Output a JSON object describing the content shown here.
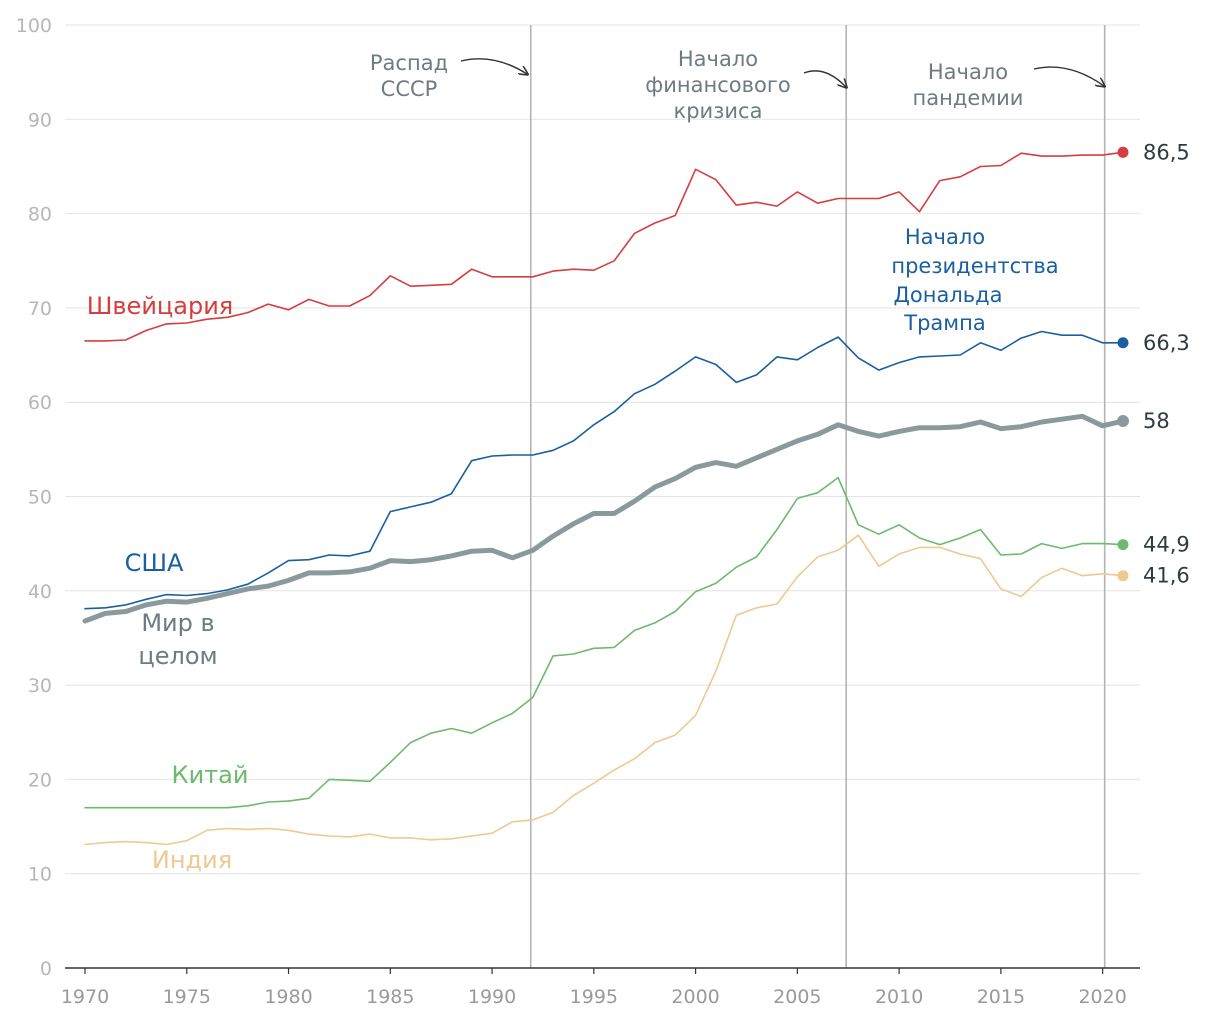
{
  "chart_data": {
    "type": "line",
    "xlim": [
      1970,
      2021
    ],
    "ylim": [
      0,
      100
    ],
    "y_ticks": [
      "0",
      "10",
      "20",
      "30",
      "40",
      "50",
      "60",
      "70",
      "80",
      "90",
      "100"
    ],
    "x_ticks": [
      "1970",
      "1975",
      "1980",
      "1985",
      "1990",
      "1995",
      "2000",
      "2005",
      "2010",
      "2015",
      "2020"
    ],
    "grid": true,
    "events": [
      {
        "year": 1991.9,
        "label_lines": [
          "Распад",
          "СССР"
        ]
      },
      {
        "year": 2007.4,
        "label_lines": [
          "Начало",
          "финансового",
          "кризиса"
        ]
      },
      {
        "year": 2020.1,
        "label_lines": [
          "Начало",
          "пандемии"
        ]
      }
    ],
    "annotation_trump": [
      "Начало",
      "президентства",
      "Дональда",
      "Трампа"
    ],
    "series": [
      {
        "name": "Швейцария",
        "label_lines": [
          "Швейцария"
        ],
        "color": "#d53e3e",
        "end_label": "86,5",
        "end_value": 86.5,
        "values": [
          [
            1970,
            66.5
          ],
          [
            1971,
            66.5
          ],
          [
            1972,
            66.6
          ],
          [
            1973,
            67.6
          ],
          [
            1974,
            68.3
          ],
          [
            1975,
            68.4
          ],
          [
            1976,
            68.8
          ],
          [
            1977,
            69.0
          ],
          [
            1978,
            69.5
          ],
          [
            1979,
            70.4
          ],
          [
            1980,
            69.8
          ],
          [
            1981,
            70.9
          ],
          [
            1982,
            70.2
          ],
          [
            1983,
            70.2
          ],
          [
            1984,
            71.3
          ],
          [
            1985,
            73.4
          ],
          [
            1986,
            72.3
          ],
          [
            1987,
            72.4
          ],
          [
            1988,
            72.5
          ],
          [
            1989,
            74.1
          ],
          [
            1990,
            73.3
          ],
          [
            1991,
            73.3
          ],
          [
            1992,
            73.3
          ],
          [
            1993,
            73.9
          ],
          [
            1994,
            74.1
          ],
          [
            1995,
            74.0
          ],
          [
            1996,
            75.0
          ],
          [
            1997,
            77.9
          ],
          [
            1998,
            79.0
          ],
          [
            1999,
            79.8
          ],
          [
            2000,
            84.7
          ],
          [
            2001,
            83.6
          ],
          [
            2002,
            80.9
          ],
          [
            2003,
            81.2
          ],
          [
            2004,
            80.8
          ],
          [
            2005,
            82.3
          ],
          [
            2006,
            81.1
          ],
          [
            2007,
            81.6
          ],
          [
            2008,
            81.6
          ],
          [
            2009,
            81.6
          ],
          [
            2010,
            82.3
          ],
          [
            2011,
            80.2
          ],
          [
            2012,
            83.5
          ],
          [
            2013,
            83.9
          ],
          [
            2014,
            85.0
          ],
          [
            2015,
            85.1
          ],
          [
            2016,
            86.4
          ],
          [
            2017,
            86.1
          ],
          [
            2018,
            86.1
          ],
          [
            2019,
            86.2
          ],
          [
            2020,
            86.2
          ],
          [
            2021,
            86.5
          ]
        ]
      },
      {
        "name": "США",
        "label_lines": [
          "США"
        ],
        "color": "#1a5fa0",
        "end_label": "66,3",
        "end_value": 66.3,
        "values": [
          [
            1970,
            38.1
          ],
          [
            1971,
            38.2
          ],
          [
            1972,
            38.5
          ],
          [
            1973,
            39.1
          ],
          [
            1974,
            39.6
          ],
          [
            1975,
            39.5
          ],
          [
            1976,
            39.7
          ],
          [
            1977,
            40.1
          ],
          [
            1978,
            40.7
          ],
          [
            1979,
            41.9
          ],
          [
            1980,
            43.2
          ],
          [
            1981,
            43.3
          ],
          [
            1982,
            43.8
          ],
          [
            1983,
            43.7
          ],
          [
            1984,
            44.2
          ],
          [
            1985,
            48.4
          ],
          [
            1986,
            48.9
          ],
          [
            1987,
            49.4
          ],
          [
            1988,
            50.3
          ],
          [
            1989,
            53.8
          ],
          [
            1990,
            54.3
          ],
          [
            1991,
            54.4
          ],
          [
            1992,
            54.4
          ],
          [
            1993,
            54.9
          ],
          [
            1994,
            55.9
          ],
          [
            1995,
            57.6
          ],
          [
            1996,
            59.0
          ],
          [
            1997,
            60.9
          ],
          [
            1998,
            61.9
          ],
          [
            1999,
            63.3
          ],
          [
            2000,
            64.8
          ],
          [
            2001,
            64.0
          ],
          [
            2002,
            62.1
          ],
          [
            2003,
            62.9
          ],
          [
            2004,
            64.8
          ],
          [
            2005,
            64.5
          ],
          [
            2006,
            65.8
          ],
          [
            2007,
            66.9
          ],
          [
            2008,
            64.7
          ],
          [
            2009,
            63.4
          ],
          [
            2010,
            64.2
          ],
          [
            2011,
            64.8
          ],
          [
            2012,
            64.9
          ],
          [
            2013,
            65.0
          ],
          [
            2014,
            66.3
          ],
          [
            2015,
            65.5
          ],
          [
            2016,
            66.8
          ],
          [
            2017,
            67.5
          ],
          [
            2018,
            67.1
          ],
          [
            2019,
            67.1
          ],
          [
            2020,
            66.3
          ],
          [
            2021,
            66.3
          ]
        ]
      },
      {
        "name": "Мир в целом",
        "label_lines": [
          "Мир в",
          "целом"
        ],
        "color": "#8a9a9c",
        "end_label": "58",
        "end_value": 58,
        "values": [
          [
            1970,
            36.8
          ],
          [
            1971,
            37.6
          ],
          [
            1972,
            37.8
          ],
          [
            1973,
            38.5
          ],
          [
            1974,
            38.9
          ],
          [
            1975,
            38.8
          ],
          [
            1976,
            39.2
          ],
          [
            1977,
            39.7
          ],
          [
            1978,
            40.2
          ],
          [
            1979,
            40.5
          ],
          [
            1980,
            41.1
          ],
          [
            1981,
            41.9
          ],
          [
            1982,
            41.9
          ],
          [
            1983,
            42.0
          ],
          [
            1984,
            42.4
          ],
          [
            1985,
            43.2
          ],
          [
            1986,
            43.1
          ],
          [
            1987,
            43.3
          ],
          [
            1988,
            43.7
          ],
          [
            1989,
            44.2
          ],
          [
            1990,
            44.3
          ],
          [
            1991,
            43.5
          ],
          [
            1992,
            44.3
          ],
          [
            1993,
            45.8
          ],
          [
            1994,
            47.1
          ],
          [
            1995,
            48.2
          ],
          [
            1996,
            48.2
          ],
          [
            1997,
            49.5
          ],
          [
            1998,
            51.0
          ],
          [
            1999,
            51.9
          ],
          [
            2000,
            53.1
          ],
          [
            2001,
            53.6
          ],
          [
            2002,
            53.2
          ],
          [
            2003,
            54.1
          ],
          [
            2004,
            55.0
          ],
          [
            2005,
            55.9
          ],
          [
            2006,
            56.6
          ],
          [
            2007,
            57.6
          ],
          [
            2008,
            56.9
          ],
          [
            2009,
            56.4
          ],
          [
            2010,
            56.9
          ],
          [
            2011,
            57.3
          ],
          [
            2012,
            57.3
          ],
          [
            2013,
            57.4
          ],
          [
            2014,
            57.9
          ],
          [
            2015,
            57.2
          ],
          [
            2016,
            57.4
          ],
          [
            2017,
            57.9
          ],
          [
            2018,
            58.2
          ],
          [
            2019,
            58.5
          ],
          [
            2020,
            57.5
          ],
          [
            2021,
            58.0
          ]
        ]
      },
      {
        "name": "Китай",
        "label_lines": [
          "Китай"
        ],
        "color": "#6fb96f",
        "end_label": "44,9",
        "end_value": 44.9,
        "values": [
          [
            1970,
            17.0
          ],
          [
            1971,
            17.0
          ],
          [
            1972,
            17.0
          ],
          [
            1973,
            17.0
          ],
          [
            1974,
            17.0
          ],
          [
            1975,
            17.0
          ],
          [
            1976,
            17.0
          ],
          [
            1977,
            17.0
          ],
          [
            1978,
            17.2
          ],
          [
            1979,
            17.6
          ],
          [
            1980,
            17.7
          ],
          [
            1981,
            18.0
          ],
          [
            1982,
            20.0
          ],
          [
            1983,
            19.9
          ],
          [
            1984,
            19.8
          ],
          [
            1985,
            21.8
          ],
          [
            1986,
            23.9
          ],
          [
            1987,
            24.9
          ],
          [
            1988,
            25.4
          ],
          [
            1989,
            24.9
          ],
          [
            1990,
            26.0
          ],
          [
            1991,
            27.0
          ],
          [
            1992,
            28.7
          ],
          [
            1993,
            33.1
          ],
          [
            1994,
            33.3
          ],
          [
            1995,
            33.9
          ],
          [
            1996,
            34.0
          ],
          [
            1997,
            35.8
          ],
          [
            1998,
            36.6
          ],
          [
            1999,
            37.8
          ],
          [
            2000,
            39.9
          ],
          [
            2001,
            40.8
          ],
          [
            2002,
            42.5
          ],
          [
            2003,
            43.6
          ],
          [
            2004,
            46.5
          ],
          [
            2005,
            49.8
          ],
          [
            2006,
            50.4
          ],
          [
            2007,
            52.0
          ],
          [
            2008,
            47.0
          ],
          [
            2009,
            46.0
          ],
          [
            2010,
            47.0
          ],
          [
            2011,
            45.6
          ],
          [
            2012,
            44.9
          ],
          [
            2013,
            45.6
          ],
          [
            2014,
            46.5
          ],
          [
            2015,
            43.8
          ],
          [
            2016,
            43.9
          ],
          [
            2017,
            45.0
          ],
          [
            2018,
            44.5
          ],
          [
            2019,
            45.0
          ],
          [
            2020,
            45.0
          ],
          [
            2021,
            44.9
          ]
        ]
      },
      {
        "name": "Индия",
        "label_lines": [
          "Индия"
        ],
        "color": "#efc892",
        "end_label": "41,6",
        "end_value": 41.6,
        "values": [
          [
            1970,
            13.1
          ],
          [
            1971,
            13.3
          ],
          [
            1972,
            13.4
          ],
          [
            1973,
            13.3
          ],
          [
            1974,
            13.1
          ],
          [
            1975,
            13.5
          ],
          [
            1976,
            14.6
          ],
          [
            1977,
            14.8
          ],
          [
            1978,
            14.7
          ],
          [
            1979,
            14.8
          ],
          [
            1980,
            14.6
          ],
          [
            1981,
            14.2
          ],
          [
            1982,
            14.0
          ],
          [
            1983,
            13.9
          ],
          [
            1984,
            14.2
          ],
          [
            1985,
            13.8
          ],
          [
            1986,
            13.8
          ],
          [
            1987,
            13.6
          ],
          [
            1988,
            13.7
          ],
          [
            1989,
            14.0
          ],
          [
            1990,
            14.3
          ],
          [
            1991,
            15.5
          ],
          [
            1992,
            15.7
          ],
          [
            1993,
            16.5
          ],
          [
            1994,
            18.3
          ],
          [
            1995,
            19.6
          ],
          [
            1996,
            21.0
          ],
          [
            1997,
            22.2
          ],
          [
            1998,
            23.9
          ],
          [
            1999,
            24.7
          ],
          [
            2000,
            26.8
          ],
          [
            2001,
            31.5
          ],
          [
            2002,
            37.4
          ],
          [
            2003,
            38.2
          ],
          [
            2004,
            38.6
          ],
          [
            2005,
            41.5
          ],
          [
            2006,
            43.6
          ],
          [
            2007,
            44.3
          ],
          [
            2008,
            45.9
          ],
          [
            2009,
            42.6
          ],
          [
            2010,
            43.9
          ],
          [
            2011,
            44.6
          ],
          [
            2012,
            44.6
          ],
          [
            2013,
            43.9
          ],
          [
            2014,
            43.4
          ],
          [
            2015,
            40.2
          ],
          [
            2016,
            39.4
          ],
          [
            2017,
            41.4
          ],
          [
            2018,
            42.4
          ],
          [
            2019,
            41.6
          ],
          [
            2020,
            41.8
          ],
          [
            2021,
            41.6
          ]
        ]
      }
    ]
  }
}
